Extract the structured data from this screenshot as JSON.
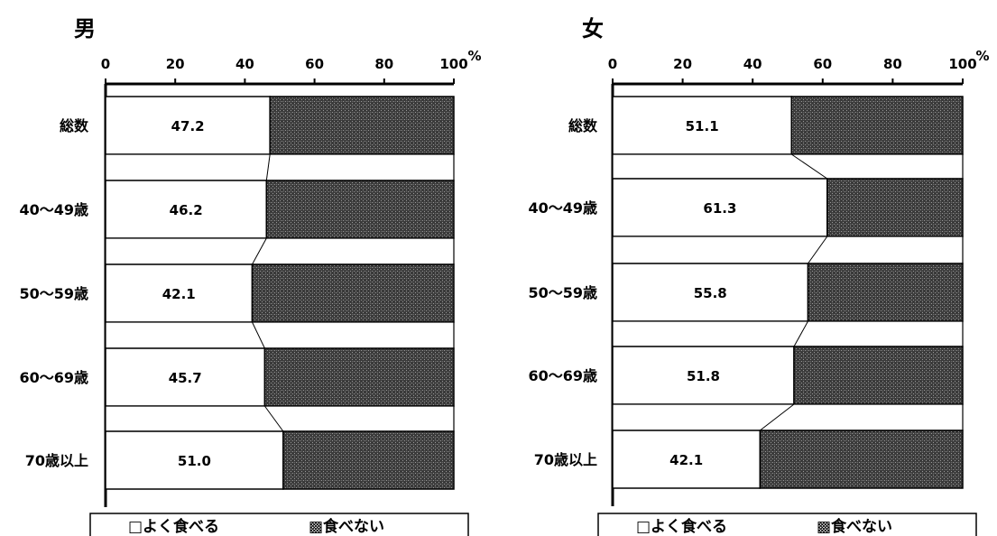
{
  "chart_data": [
    {
      "type": "bar",
      "title": "男",
      "categories": [
        "総数",
        "40〜49歳",
        "50〜59歳",
        "60〜69歳",
        "70歳以上"
      ],
      "series": [
        {
          "name": "よく食べる",
          "values": [
            47.2,
            46.2,
            42.1,
            45.7,
            51.0
          ],
          "labels": [
            "47.2",
            "46.2",
            "42.1",
            "45.7",
            "51.0"
          ]
        },
        {
          "name": "食べない",
          "values": [
            52.8,
            53.8,
            57.9,
            54.3,
            49.0
          ]
        }
      ],
      "xlim": [
        0,
        100
      ],
      "xticks": [
        "0",
        "20",
        "40",
        "60",
        "80",
        "100"
      ],
      "unit": "%",
      "stacked": true,
      "orientation": "horizontal"
    },
    {
      "type": "bar",
      "title": "女",
      "categories": [
        "総数",
        "40〜49歳",
        "50〜59歳",
        "60〜69歳",
        "70歳以上"
      ],
      "series": [
        {
          "name": "よく食べる",
          "values": [
            51.1,
            61.3,
            55.8,
            51.8,
            42.1
          ],
          "labels": [
            "51.1",
            "61.3",
            "55.8",
            "51.8",
            "42.1"
          ]
        },
        {
          "name": "食べない",
          "values": [
            48.9,
            38.7,
            44.2,
            48.2,
            57.9
          ]
        }
      ],
      "xlim": [
        0,
        100
      ],
      "xticks": [
        "0",
        "20",
        "40",
        "60",
        "80",
        "100"
      ],
      "unit": "%",
      "stacked": true,
      "orientation": "horizontal"
    }
  ],
  "legend": {
    "eat": "□よく食べる",
    "not_eat": "▩食べない"
  },
  "colors": {
    "eat": "#ffffff",
    "not_eat": "#3a3a3a",
    "outline": "#000000"
  }
}
